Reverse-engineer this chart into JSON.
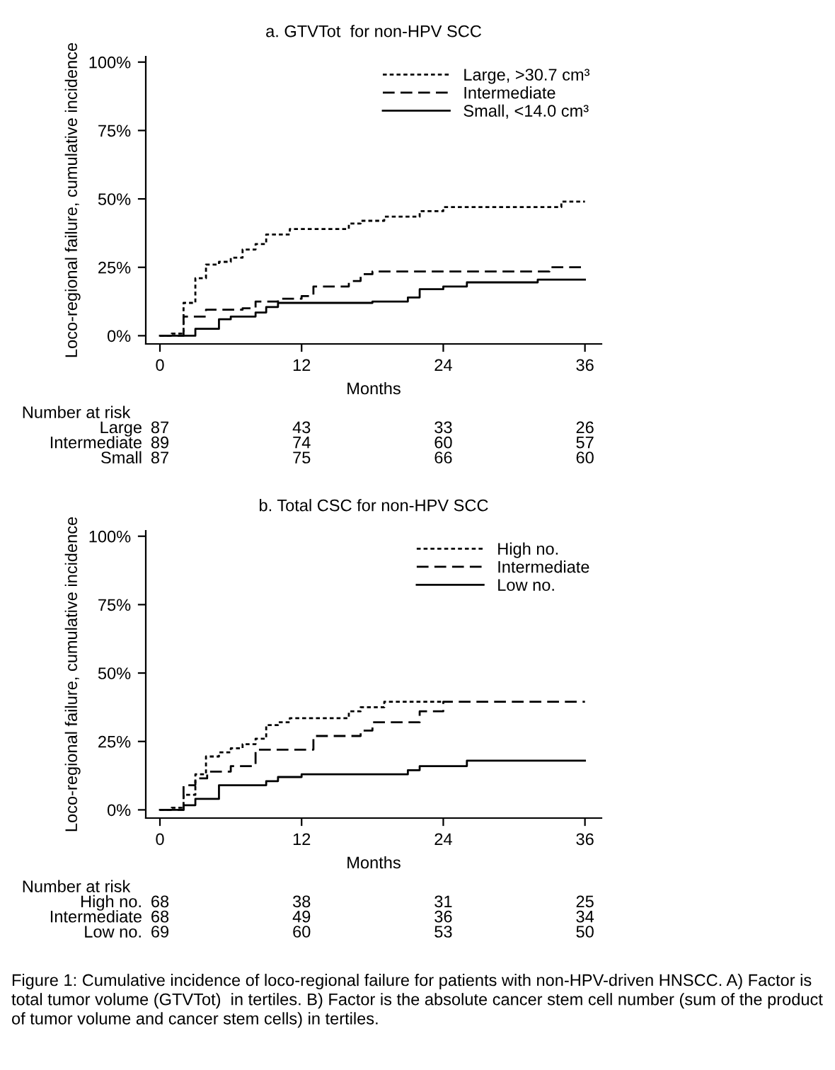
{
  "chart_data": [
    {
      "type": "step",
      "title": "a. GTVTot  for non-HPV SCC",
      "xlabel": "Months",
      "ylabel": "Loco-regional failure, cumulative incidence",
      "xlim": [
        -1.2,
        37.4
      ],
      "xticks": [
        0,
        12,
        24,
        36
      ],
      "ylim": [
        -3,
        102
      ],
      "yticks": [
        {
          "value": 0,
          "label": "0%"
        },
        {
          "value": 25,
          "label": "25%"
        },
        {
          "value": 50,
          "label": "50%"
        },
        {
          "value": 75,
          "label": "75%"
        },
        {
          "value": 100,
          "label": "100%"
        }
      ],
      "grid": false,
      "legend": "top right",
      "marker": "none",
      "series": [
        {
          "name": "Large, >30.7 cm³",
          "color": "#000000",
          "line_style": "dotted",
          "x": [
            0,
            1,
            2,
            3,
            3.9,
            5,
            6,
            7,
            8.1,
            9,
            11,
            16,
            17,
            19,
            22,
            24,
            34,
            36
          ],
          "values": [
            0,
            0.8,
            12,
            21,
            26,
            27,
            28.5,
            31.5,
            33.5,
            37,
            39,
            41,
            42,
            43.5,
            45.5,
            47,
            49,
            49
          ]
        },
        {
          "name": "Intermediate",
          "color": "#000000",
          "line_style": "dashed",
          "x": [
            0,
            2,
            3.9,
            7,
            8.1,
            10,
            12,
            13,
            16,
            17,
            18,
            33,
            36
          ],
          "values": [
            0,
            7,
            9.5,
            10,
            12.5,
            13.5,
            14.5,
            18,
            20,
            22.5,
            23.5,
            25,
            25
          ]
        },
        {
          "name": "Small, <14.0 cm³",
          "color": "#000000",
          "line_style": "solid",
          "x": [
            0,
            3,
            5,
            6,
            8.1,
            9,
            10,
            18,
            21,
            22,
            24,
            26,
            32,
            36
          ],
          "values": [
            0,
            2.5,
            6,
            7,
            8.5,
            10.5,
            12,
            12.5,
            14,
            17,
            18,
            19.5,
            20.5,
            20.5
          ]
        }
      ]
    },
    {
      "type": "other",
      "title": "Number at risk",
      "annotations": [
        "Large",
        "87",
        "43",
        "33",
        "26",
        "Intermediate",
        "89",
        "74",
        "60",
        "57",
        "Small",
        "87",
        "75",
        "66",
        "60"
      ]
    },
    {
      "type": "step",
      "title": "b. Total CSC for non-HPV SCC",
      "xlabel": "Months",
      "ylabel": "Loco-regional failure, cumulative incidence",
      "xlim": [
        -1.2,
        37.4
      ],
      "xticks": [
        0,
        12,
        24,
        36
      ],
      "ylim": [
        -3,
        102
      ],
      "yticks": [
        {
          "value": 0,
          "label": "0%"
        },
        {
          "value": 25,
          "label": "25%"
        },
        {
          "value": 50,
          "label": "50%"
        },
        {
          "value": 75,
          "label": "75%"
        },
        {
          "value": 100,
          "label": "100%"
        }
      ],
      "grid": false,
      "legend": "top right",
      "marker": "none",
      "series": [
        {
          "name": "High no.",
          "color": "#000000",
          "line_style": "dotted",
          "x": [
            0,
            1,
            2,
            3,
            3.9,
            5,
            6,
            7,
            8.1,
            9,
            10,
            11,
            16,
            17,
            19,
            24
          ],
          "values": [
            0,
            0.8,
            5.5,
            13,
            19.5,
            21,
            22.5,
            24,
            26,
            31,
            32,
            33.5,
            36,
            37.5,
            39.5,
            39.5
          ]
        },
        {
          "name": "Intermediate",
          "color": "#000000",
          "line_style": "dashed",
          "x": [
            0,
            2,
            3,
            4,
            6,
            8.1,
            13,
            17,
            18,
            22,
            24,
            36
          ],
          "values": [
            0,
            9,
            11.5,
            14,
            16,
            22,
            27,
            29,
            32,
            36,
            39.5,
            39.5
          ]
        },
        {
          "name": "Low no.",
          "color": "#000000",
          "line_style": "solid",
          "x": [
            0,
            2,
            3,
            5,
            9,
            10,
            12,
            21,
            22,
            26,
            36
          ],
          "values": [
            0,
            1.7,
            4,
            9,
            10.5,
            12,
            13,
            14.5,
            16,
            18,
            18
          ]
        }
      ]
    },
    {
      "type": "other",
      "title": "Number at risk",
      "annotations": [
        "High no.",
        "68",
        "38",
        "31",
        "25",
        "Intermediate",
        "68",
        "49",
        "36",
        "34",
        "Low no.",
        "69",
        "60",
        "53",
        "50",
        "Figure 1: Cumulative incidence of loco-regional failure for patients with non-HPV-driven HNSCC. A) Factor is total tumor volume (GTVTot)  in tertiles. B) Factor is the absolute cancer stem cell number (sum of the product of tumor volume and cancer stem cells) in tertiles."
      ]
    }
  ]
}
